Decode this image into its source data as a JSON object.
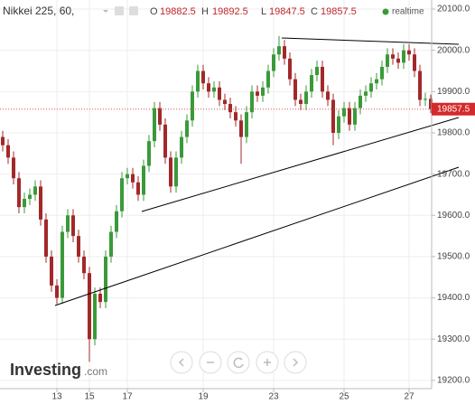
{
  "chart_data": {
    "type": "candlestick",
    "title": "Nikkei 225, 60,",
    "ohlc_labels": [
      "O",
      "H",
      "L",
      "C"
    ],
    "status": "realtime",
    "brand": "Investing",
    "brand_suffix": ".com",
    "up_color": "#3a9a3a",
    "down_color": "#a3282a",
    "grid": true,
    "categories": [
      null,
      null,
      null,
      null,
      null,
      null,
      null,
      null,
      null,
      null,
      "13",
      null,
      null,
      null,
      null,
      null,
      "15",
      null,
      null,
      null,
      null,
      null,
      null,
      "17",
      null,
      null,
      null,
      null,
      null,
      null,
      null,
      null,
      null,
      null,
      null,
      null,
      null,
      "19",
      null,
      null,
      null,
      null,
      null,
      null,
      null,
      null,
      null,
      null,
      null,
      null,
      "23",
      null,
      null,
      null,
      null,
      null,
      null,
      null,
      null,
      null,
      null,
      null,
      null,
      "25",
      null,
      null,
      null,
      null,
      null,
      null,
      null,
      null,
      null,
      null,
      null,
      "27",
      null,
      null,
      null,
      null
    ],
    "open": [
      19790,
      19770,
      19740,
      19690,
      19620,
      19640,
      19650,
      19670,
      19590,
      19500,
      19430,
      19400,
      19560,
      19600,
      19550,
      19500,
      19460,
      19300,
      19410,
      19390,
      19500,
      19560,
      19610,
      19690,
      19700,
      19680,
      19650,
      19720,
      19780,
      19860,
      19820,
      19740,
      19670,
      19740,
      19790,
      19830,
      19900,
      19950,
      19920,
      19900,
      19910,
      19880,
      19870,
      19850,
      19830,
      19790,
      19850,
      19900,
      19890,
      19910,
      19950,
      19990,
      20010,
      19980,
      19930,
      19880,
      19870,
      19900,
      19940,
      19960,
      19900,
      19880,
      19800,
      19840,
      19860,
      19820,
      19860,
      19890,
      19900,
      19920,
      19930,
      19960,
      19990,
      19980,
      19970,
      20000,
      19990,
      19950,
      19880,
      19882.5
    ],
    "high": [
      19805,
      19785,
      19755,
      19705,
      19655,
      19665,
      19685,
      19685,
      19605,
      19515,
      19445,
      19575,
      19615,
      19615,
      19565,
      19515,
      19475,
      19425,
      19425,
      19515,
      19575,
      19625,
      19705,
      19715,
      19715,
      19695,
      19735,
      19795,
      19875,
      19875,
      19835,
      19755,
      19755,
      19805,
      19845,
      19915,
      19965,
      19965,
      19935,
      19925,
      19925,
      19895,
      19885,
      19865,
      19845,
      19865,
      19915,
      19915,
      19925,
      19965,
      20005,
      20035,
      20025,
      19995,
      19945,
      19895,
      19915,
      19955,
      19975,
      19975,
      19915,
      19895,
      19855,
      19875,
      19875,
      19875,
      19905,
      19915,
      19935,
      19945,
      19975,
      20005,
      20005,
      19995,
      20015,
      20015,
      20005,
      19965,
      19897.5,
      19892.5
    ],
    "low": [
      19755,
      19725,
      19675,
      19605,
      19605,
      19625,
      19635,
      19575,
      19485,
      19415,
      19385,
      19385,
      19545,
      19535,
      19485,
      19445,
      19245,
      19285,
      19375,
      19375,
      19485,
      19545,
      19595,
      19675,
      19665,
      19635,
      19635,
      19705,
      19765,
      19805,
      19725,
      19655,
      19655,
      19725,
      19775,
      19815,
      19885,
      19905,
      19885,
      19885,
      19865,
      19855,
      19835,
      19815,
      19725,
      19775,
      19835,
      19875,
      19875,
      19895,
      19935,
      19975,
      19965,
      19915,
      19865,
      19855,
      19855,
      19885,
      19925,
      19885,
      19865,
      19770,
      19785,
      19825,
      19805,
      19805,
      19845,
      19875,
      19885,
      19905,
      19915,
      19945,
      19965,
      19955,
      19955,
      19975,
      19935,
      19865,
      19865,
      19847.5
    ],
    "close": [
      19770,
      19740,
      19690,
      19620,
      19640,
      19650,
      19670,
      19590,
      19500,
      19430,
      19400,
      19560,
      19600,
      19550,
      19500,
      19460,
      19300,
      19410,
      19390,
      19500,
      19560,
      19610,
      19690,
      19700,
      19680,
      19650,
      19720,
      19780,
      19860,
      19820,
      19740,
      19670,
      19740,
      19790,
      19830,
      19900,
      19950,
      19920,
      19900,
      19910,
      19880,
      19870,
      19850,
      19830,
      19790,
      19850,
      19900,
      19890,
      19910,
      19950,
      19990,
      20010,
      19980,
      19930,
      19880,
      19870,
      19900,
      19940,
      19960,
      19900,
      19880,
      19800,
      19840,
      19860,
      19820,
      19860,
      19890,
      19900,
      19920,
      19930,
      19960,
      19990,
      19980,
      19970,
      20000,
      19990,
      19950,
      19880,
      19882.5,
      19857.5
    ],
    "ylim": [
      19180,
      20122
    ],
    "yticks": [
      {
        "value": 19200,
        "label": "19200.0"
      },
      {
        "value": 19300,
        "label": "19300.0"
      },
      {
        "value": 19400,
        "label": "19400.0"
      },
      {
        "value": 19500,
        "label": "19500.0"
      },
      {
        "value": 19600,
        "label": "19600.0"
      },
      {
        "value": 19700,
        "label": "19700.0"
      },
      {
        "value": 19800,
        "label": "19800.0"
      },
      {
        "value": 19900,
        "label": "19900.0"
      },
      {
        "value": 20000,
        "label": "20000.0"
      },
      {
        "value": 20100,
        "label": "20100.0"
      }
    ]
  }
}
